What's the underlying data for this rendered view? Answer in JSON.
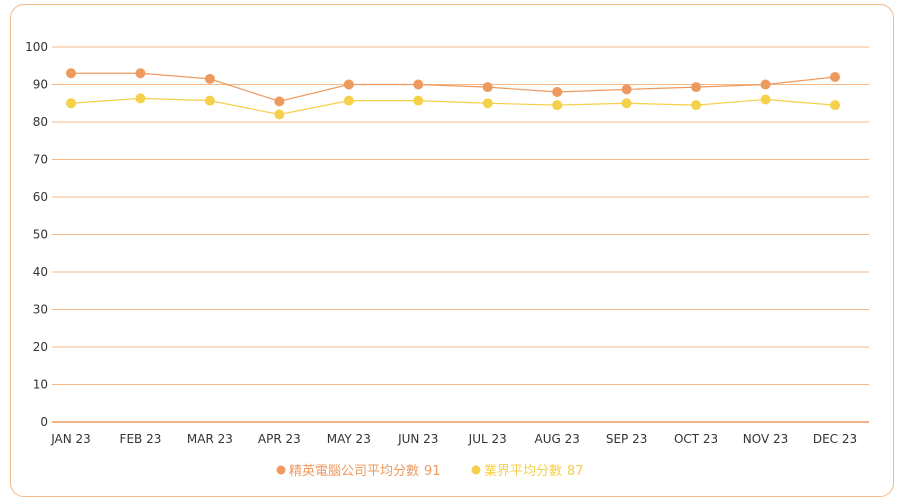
{
  "chart_data": {
    "type": "line",
    "title": "",
    "xlabel": "",
    "ylabel": "",
    "categories": [
      "JAN 23",
      "FEB 23",
      "MAR 23",
      "APR 23",
      "MAY 23",
      "JUN 23",
      "JUL 23",
      "AUG 23",
      "SEP 23",
      "OCT 23",
      "NOV 23",
      "DEC 23"
    ],
    "ylim": [
      0,
      100
    ],
    "yticks": [
      "0",
      "10",
      "20",
      "30",
      "40",
      "50",
      "60",
      "70",
      "80",
      "90",
      "100"
    ],
    "grid": true,
    "legend_position": "bottom",
    "series": [
      {
        "name": "精英電腦公司平均分數",
        "summary": "91",
        "color": "#ee9a5f",
        "values": [
          93,
          93,
          91.5,
          85.5,
          90,
          90,
          89.3,
          88,
          88.7,
          89.3,
          90,
          92
        ]
      },
      {
        "name": "業界平均分數",
        "summary": "87",
        "color": "#f5d04a",
        "values": [
          85,
          86.3,
          85.7,
          82,
          85.7,
          85.7,
          85,
          84.5,
          85,
          84.5,
          86,
          84.5
        ]
      }
    ]
  },
  "colors": {
    "gridline": "#f4b888",
    "baseline": "#ee9a5f",
    "card_border": "#f2b98a"
  }
}
